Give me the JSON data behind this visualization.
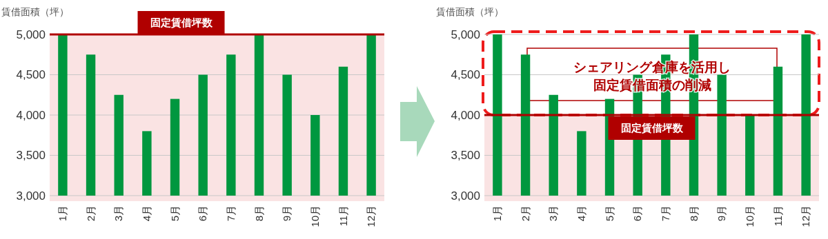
{
  "chart_data": [
    {
      "type": "bar",
      "ylabel": "賃借面積（坪）",
      "categories": [
        "1月",
        "2月",
        "3月",
        "4月",
        "5月",
        "6月",
        "7月",
        "8月",
        "9月",
        "10月",
        "11月",
        "12月"
      ],
      "values": [
        5000,
        4750,
        4250,
        3800,
        4200,
        4500,
        4750,
        5000,
        4500,
        4000,
        4600,
        5000
      ],
      "color": "#00973f",
      "ylim": [
        3000,
        5000
      ],
      "yticks": [
        {
          "value": 3000,
          "label": "3,000"
        },
        {
          "value": 3500,
          "label": "3,500"
        },
        {
          "value": 4000,
          "label": "4,000"
        },
        {
          "value": 4500,
          "label": "4,500"
        },
        {
          "value": 5000,
          "label": "5,000"
        }
      ],
      "grid": "y",
      "ref_lines": [
        {
          "axis": "y",
          "value": 5000,
          "label": "固定賃借坪数",
          "color": "#b00000"
        }
      ],
      "bands": [
        {
          "axis": "y",
          "from": 3000,
          "to": 5000,
          "color": "#fae3e3"
        }
      ]
    },
    {
      "type": "bar",
      "ylabel": "賃借面積（坪）",
      "categories": [
        "1月",
        "2月",
        "3月",
        "4月",
        "5月",
        "6月",
        "7月",
        "8月",
        "9月",
        "10月",
        "11月",
        "12月"
      ],
      "values": [
        5000,
        4750,
        4250,
        3800,
        4200,
        4500,
        4750,
        5000,
        4500,
        4000,
        4600,
        5000
      ],
      "color": "#00973f",
      "ylim": [
        3000,
        5000
      ],
      "yticks": [
        {
          "value": 3000,
          "label": "3,000"
        },
        {
          "value": 3500,
          "label": "3,500"
        },
        {
          "value": 4000,
          "label": "4,000"
        },
        {
          "value": 4500,
          "label": "4,500"
        },
        {
          "value": 5000,
          "label": "5,000"
        }
      ],
      "grid": "y",
      "ref_lines": [
        {
          "axis": "y",
          "value": 4000,
          "label": "固定賃借坪数",
          "color": "#b00000"
        }
      ],
      "bands": [
        {
          "axis": "y",
          "from": 3000,
          "to": 4000,
          "color": "#fae3e3"
        }
      ],
      "annotations": [
        "シェアリング倉庫を活用し",
        "固定賃借面積の削減"
      ]
    }
  ]
}
